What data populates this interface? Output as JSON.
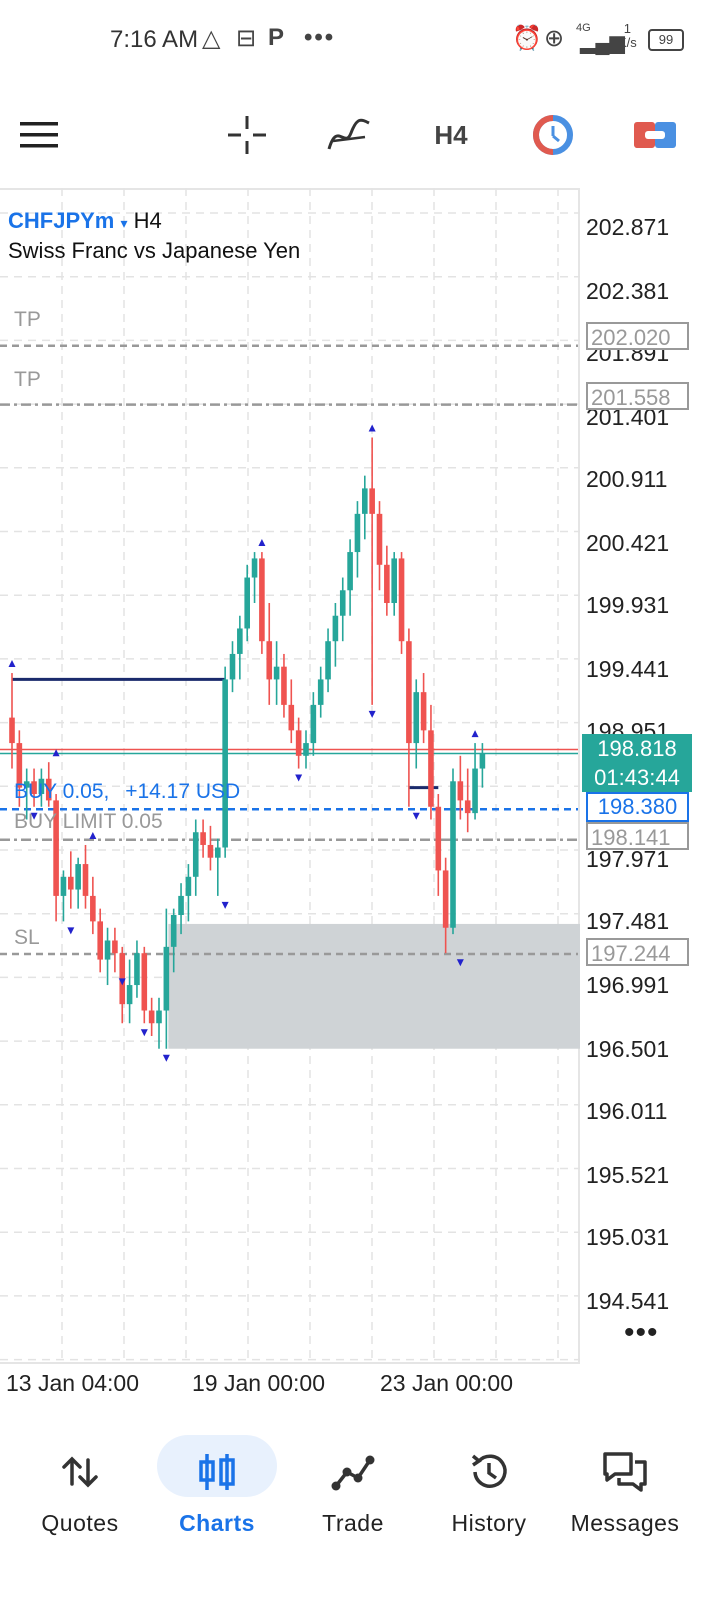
{
  "status_bar": {
    "time": "7:16 AM",
    "network": "4G",
    "speed_value": "1",
    "speed_unit": "K/s",
    "battery": "99"
  },
  "toolbar": {
    "timeframe": "H4",
    "icons": [
      "menu-icon",
      "crosshair-icon",
      "indicators-icon",
      "timeframe",
      "clock-icon",
      "trade-icon"
    ]
  },
  "chart": {
    "symbol": "CHFJPYm",
    "timeframe": "H4",
    "description": "Swiss Franc vs Japanese Yen",
    "price_axis": [
      "202.871",
      "202.381",
      "201.891",
      "201.401",
      "200.911",
      "200.421",
      "199.931",
      "199.441",
      "198.951",
      "197.971",
      "197.481",
      "196.991",
      "196.501",
      "196.011",
      "195.521",
      "195.031",
      "194.541"
    ],
    "time_axis": [
      "13 Jan 04:00",
      "19 Jan 00:00",
      "23 Jan 00:00"
    ],
    "current_price": "198.818",
    "countdown": "01:43:44",
    "position_label": "BUY 0.05,",
    "position_profit": "+14.17 USD",
    "position_price": "198.380",
    "limit_label": "BUY LIMIT 0.05",
    "limit_price": "198.141",
    "tp1_label": "TP",
    "tp1_price": "202.020",
    "tp2_label": "TP",
    "tp2_price": "201.558",
    "sl_label": "SL",
    "sl_price": "197.244",
    "colors": {
      "bull": "#26a69a",
      "bear": "#ef5350",
      "position": "#1a73e8",
      "level": "#999999",
      "zone": "#cfd3d6",
      "marker": "#2222cc"
    }
  },
  "chart_data": {
    "type": "candlestick",
    "y_range": [
      194.3,
      203.2
    ],
    "candles": [
      {
        "o": 199.1,
        "h": 199.45,
        "l": 198.7,
        "c": 198.9
      },
      {
        "o": 198.9,
        "h": 199.0,
        "l": 198.4,
        "c": 198.55
      },
      {
        "o": 198.55,
        "h": 198.7,
        "l": 198.3,
        "c": 198.6
      },
      {
        "o": 198.6,
        "h": 198.7,
        "l": 198.4,
        "c": 198.5
      },
      {
        "o": 198.5,
        "h": 198.7,
        "l": 198.4,
        "c": 198.62
      },
      {
        "o": 198.62,
        "h": 198.75,
        "l": 198.4,
        "c": 198.45
      },
      {
        "o": 198.45,
        "h": 198.5,
        "l": 197.5,
        "c": 197.7
      },
      {
        "o": 197.7,
        "h": 197.9,
        "l": 197.5,
        "c": 197.85
      },
      {
        "o": 197.85,
        "h": 198.05,
        "l": 197.6,
        "c": 197.75
      },
      {
        "o": 197.75,
        "h": 198.0,
        "l": 197.6,
        "c": 197.95
      },
      {
        "o": 197.95,
        "h": 198.1,
        "l": 197.6,
        "c": 197.7
      },
      {
        "o": 197.7,
        "h": 197.85,
        "l": 197.4,
        "c": 197.5
      },
      {
        "o": 197.5,
        "h": 197.6,
        "l": 197.1,
        "c": 197.2
      },
      {
        "o": 197.2,
        "h": 197.45,
        "l": 197.0,
        "c": 197.35
      },
      {
        "o": 197.35,
        "h": 197.45,
        "l": 197.1,
        "c": 197.25
      },
      {
        "o": 197.25,
        "h": 197.3,
        "l": 196.7,
        "c": 196.85
      },
      {
        "o": 196.85,
        "h": 197.2,
        "l": 196.7,
        "c": 197.0
      },
      {
        "o": 197.0,
        "h": 197.35,
        "l": 196.9,
        "c": 197.25
      },
      {
        "o": 197.25,
        "h": 197.3,
        "l": 196.7,
        "c": 196.8
      },
      {
        "o": 196.8,
        "h": 196.9,
        "l": 196.6,
        "c": 196.7
      },
      {
        "o": 196.7,
        "h": 196.9,
        "l": 196.5,
        "c": 196.8
      },
      {
        "o": 196.8,
        "h": 197.6,
        "l": 196.5,
        "c": 197.3
      },
      {
        "o": 197.3,
        "h": 197.6,
        "l": 197.1,
        "c": 197.55
      },
      {
        "o": 197.55,
        "h": 197.8,
        "l": 197.4,
        "c": 197.7
      },
      {
        "o": 197.7,
        "h": 197.95,
        "l": 197.5,
        "c": 197.85
      },
      {
        "o": 197.85,
        "h": 198.3,
        "l": 197.7,
        "c": 198.2
      },
      {
        "o": 198.2,
        "h": 198.3,
        "l": 198.0,
        "c": 198.1
      },
      {
        "o": 198.1,
        "h": 198.25,
        "l": 197.9,
        "c": 198.0
      },
      {
        "o": 198.0,
        "h": 198.15,
        "l": 197.7,
        "c": 198.08
      },
      {
        "o": 198.08,
        "h": 199.5,
        "l": 198.0,
        "c": 199.4
      },
      {
        "o": 199.4,
        "h": 199.7,
        "l": 199.3,
        "c": 199.6
      },
      {
        "o": 199.6,
        "h": 199.9,
        "l": 199.4,
        "c": 199.8
      },
      {
        "o": 199.8,
        "h": 200.3,
        "l": 199.7,
        "c": 200.2
      },
      {
        "o": 200.2,
        "h": 200.4,
        "l": 200.0,
        "c": 200.35
      },
      {
        "o": 200.35,
        "h": 200.4,
        "l": 199.6,
        "c": 199.7
      },
      {
        "o": 199.7,
        "h": 200.0,
        "l": 199.2,
        "c": 199.4
      },
      {
        "o": 199.4,
        "h": 199.7,
        "l": 199.2,
        "c": 199.5
      },
      {
        "o": 199.5,
        "h": 199.6,
        "l": 199.1,
        "c": 199.2
      },
      {
        "o": 199.2,
        "h": 199.4,
        "l": 198.9,
        "c": 199.0
      },
      {
        "o": 199.0,
        "h": 199.1,
        "l": 198.7,
        "c": 198.8
      },
      {
        "o": 198.8,
        "h": 199.0,
        "l": 198.7,
        "c": 198.9
      },
      {
        "o": 198.9,
        "h": 199.3,
        "l": 198.8,
        "c": 199.2
      },
      {
        "o": 199.2,
        "h": 199.5,
        "l": 199.1,
        "c": 199.4
      },
      {
        "o": 199.4,
        "h": 199.8,
        "l": 199.3,
        "c": 199.7
      },
      {
        "o": 199.7,
        "h": 200.0,
        "l": 199.5,
        "c": 199.9
      },
      {
        "o": 199.9,
        "h": 200.2,
        "l": 199.7,
        "c": 200.1
      },
      {
        "o": 200.1,
        "h": 200.5,
        "l": 199.9,
        "c": 200.4
      },
      {
        "o": 200.4,
        "h": 200.8,
        "l": 200.2,
        "c": 200.7
      },
      {
        "o": 200.7,
        "h": 201.0,
        "l": 200.5,
        "c": 200.9
      },
      {
        "o": 200.9,
        "h": 201.3,
        "l": 199.2,
        "c": 200.7
      },
      {
        "o": 200.7,
        "h": 200.8,
        "l": 200.1,
        "c": 200.3
      },
      {
        "o": 200.3,
        "h": 200.45,
        "l": 199.9,
        "c": 200.0
      },
      {
        "o": 200.0,
        "h": 200.4,
        "l": 199.9,
        "c": 200.35
      },
      {
        "o": 200.35,
        "h": 200.4,
        "l": 199.6,
        "c": 199.7
      },
      {
        "o": 199.7,
        "h": 199.8,
        "l": 198.4,
        "c": 198.9
      },
      {
        "o": 198.9,
        "h": 199.4,
        "l": 198.7,
        "c": 199.3
      },
      {
        "o": 199.3,
        "h": 199.45,
        "l": 198.9,
        "c": 199.0
      },
      {
        "o": 199.0,
        "h": 199.2,
        "l": 198.3,
        "c": 198.4
      },
      {
        "o": 198.4,
        "h": 198.5,
        "l": 197.7,
        "c": 197.9
      },
      {
        "o": 197.9,
        "h": 198.0,
        "l": 197.25,
        "c": 197.45
      },
      {
        "o": 197.45,
        "h": 198.7,
        "l": 197.4,
        "c": 198.6
      },
      {
        "o": 198.6,
        "h": 198.8,
        "l": 198.3,
        "c": 198.45
      },
      {
        "o": 198.45,
        "h": 198.7,
        "l": 198.2,
        "c": 198.35
      },
      {
        "o": 198.35,
        "h": 198.9,
        "l": 198.3,
        "c": 198.7
      },
      {
        "o": 198.7,
        "h": 198.9,
        "l": 198.55,
        "c": 198.82
      }
    ],
    "up_markers": [
      [
        0,
        199.45
      ],
      [
        6,
        198.75
      ],
      [
        11,
        198.1
      ],
      [
        34,
        200.4
      ],
      [
        49,
        201.3
      ],
      [
        63,
        198.9
      ]
    ],
    "down_markers": [
      [
        3,
        198.4
      ],
      [
        8,
        197.5
      ],
      [
        15,
        197.1
      ],
      [
        18,
        196.7
      ],
      [
        21,
        196.5
      ],
      [
        29,
        197.7
      ],
      [
        39,
        198.7
      ],
      [
        49,
        199.2
      ],
      [
        55,
        198.4
      ],
      [
        61,
        197.25
      ]
    ],
    "position_lines": [
      {
        "price": 199.4,
        "from": 0,
        "to": 29
      },
      {
        "price": 198.55,
        "from": 54,
        "to": 58
      }
    ],
    "sl_zone": {
      "from": 21,
      "top": 197.48,
      "bottom": 196.5
    }
  },
  "nav": {
    "quotes": "Quotes",
    "charts": "Charts",
    "trade": "Trade",
    "history": "History",
    "messages": "Messages"
  }
}
